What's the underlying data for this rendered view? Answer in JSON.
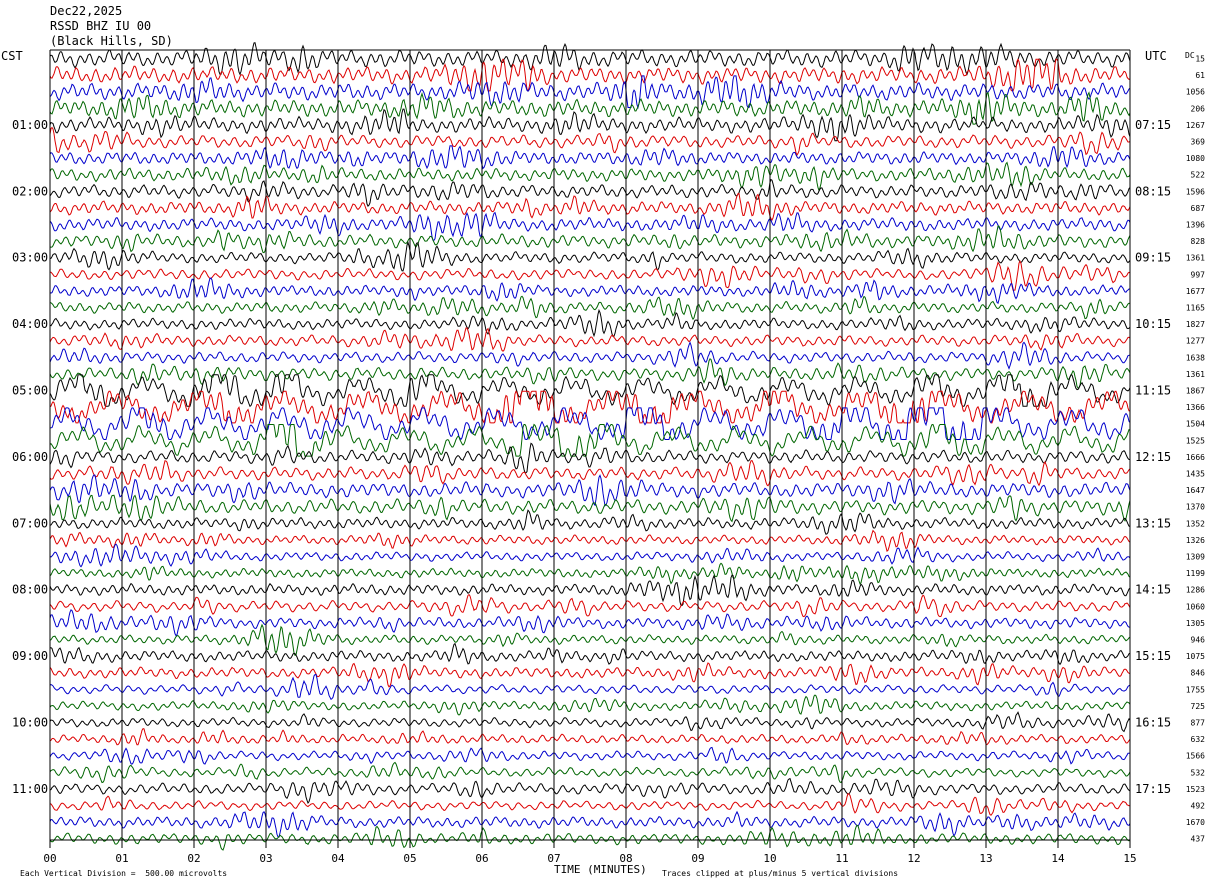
{
  "header": {
    "date": "Dec22,2025",
    "station": "RSSD BHZ IU 00",
    "location": "(Black Hills, SD)"
  },
  "left_zone_label": "CST",
  "right_zone_label": "UTC",
  "dc_label": "DC",
  "footer": {
    "scale_note": "Each Vertical Division =  500.00 microvolts",
    "xlabel": "TIME (MINUTES)",
    "clip_note": "Traces clipped at plus/minus 5 vertical divisions"
  },
  "colors": {
    "trace_cycle": [
      "#000000",
      "#dd0000",
      "#0000cc",
      "#006600"
    ],
    "grid": "#000000",
    "background": "#ffffff"
  },
  "chart_data": {
    "type": "line",
    "title": "RSSD BHZ IU 00 (Black Hills, SD) Dec22,2025",
    "xlabel": "TIME (MINUTES)",
    "xlim": [
      0,
      15
    ],
    "x_ticks": [
      "00",
      "01",
      "02",
      "03",
      "04",
      "05",
      "06",
      "07",
      "08",
      "09",
      "10",
      "11",
      "12",
      "13",
      "14",
      "15"
    ],
    "rows_per_hour": 4,
    "row_count": 48,
    "left_hour_labels": [
      "01:00",
      "02:00",
      "03:00",
      "04:00",
      "05:00",
      "06:00",
      "07:00",
      "08:00",
      "09:00",
      "10:00",
      "11:00"
    ],
    "right_hour_labels": [
      "07:15",
      "08:15",
      "09:15",
      "10:15",
      "11:15",
      "12:15",
      "13:15",
      "14:15",
      "15:15",
      "16:15",
      "17:15"
    ],
    "dc_offsets": [
      "15",
      "61",
      "1056",
      "206",
      "1267",
      "369",
      "1080",
      "522",
      "1596",
      "687",
      "1396",
      "828",
      "1361",
      "997",
      "1677",
      "1165",
      "1827",
      "1277",
      "1638",
      "1361",
      "1867",
      "1366",
      "1504",
      "1525",
      "1666",
      "1435",
      "1647",
      "1370",
      "1352",
      "1326",
      "1309",
      "1199",
      "1286",
      "1060",
      "1305",
      "946",
      "1075",
      "846",
      "1755",
      "725",
      "877",
      "632",
      "1566",
      "532",
      "1523",
      "492",
      "1670",
      "437"
    ],
    "amplitude_divisions_per_row": [
      0.45,
      0.45,
      0.45,
      0.45,
      0.4,
      0.35,
      0.35,
      0.35,
      0.35,
      0.35,
      0.35,
      0.35,
      0.3,
      0.3,
      0.3,
      0.3,
      0.3,
      0.3,
      0.3,
      0.35,
      0.5,
      0.6,
      0.6,
      0.5,
      0.35,
      0.35,
      0.4,
      0.4,
      0.3,
      0.25,
      0.25,
      0.25,
      0.3,
      0.3,
      0.3,
      0.25,
      0.3,
      0.3,
      0.25,
      0.25,
      0.25,
      0.25,
      0.25,
      0.25,
      0.3,
      0.25,
      0.3,
      0.3
    ],
    "units": "500.00 microvolts per vertical division",
    "clip_level_divisions": 5
  }
}
